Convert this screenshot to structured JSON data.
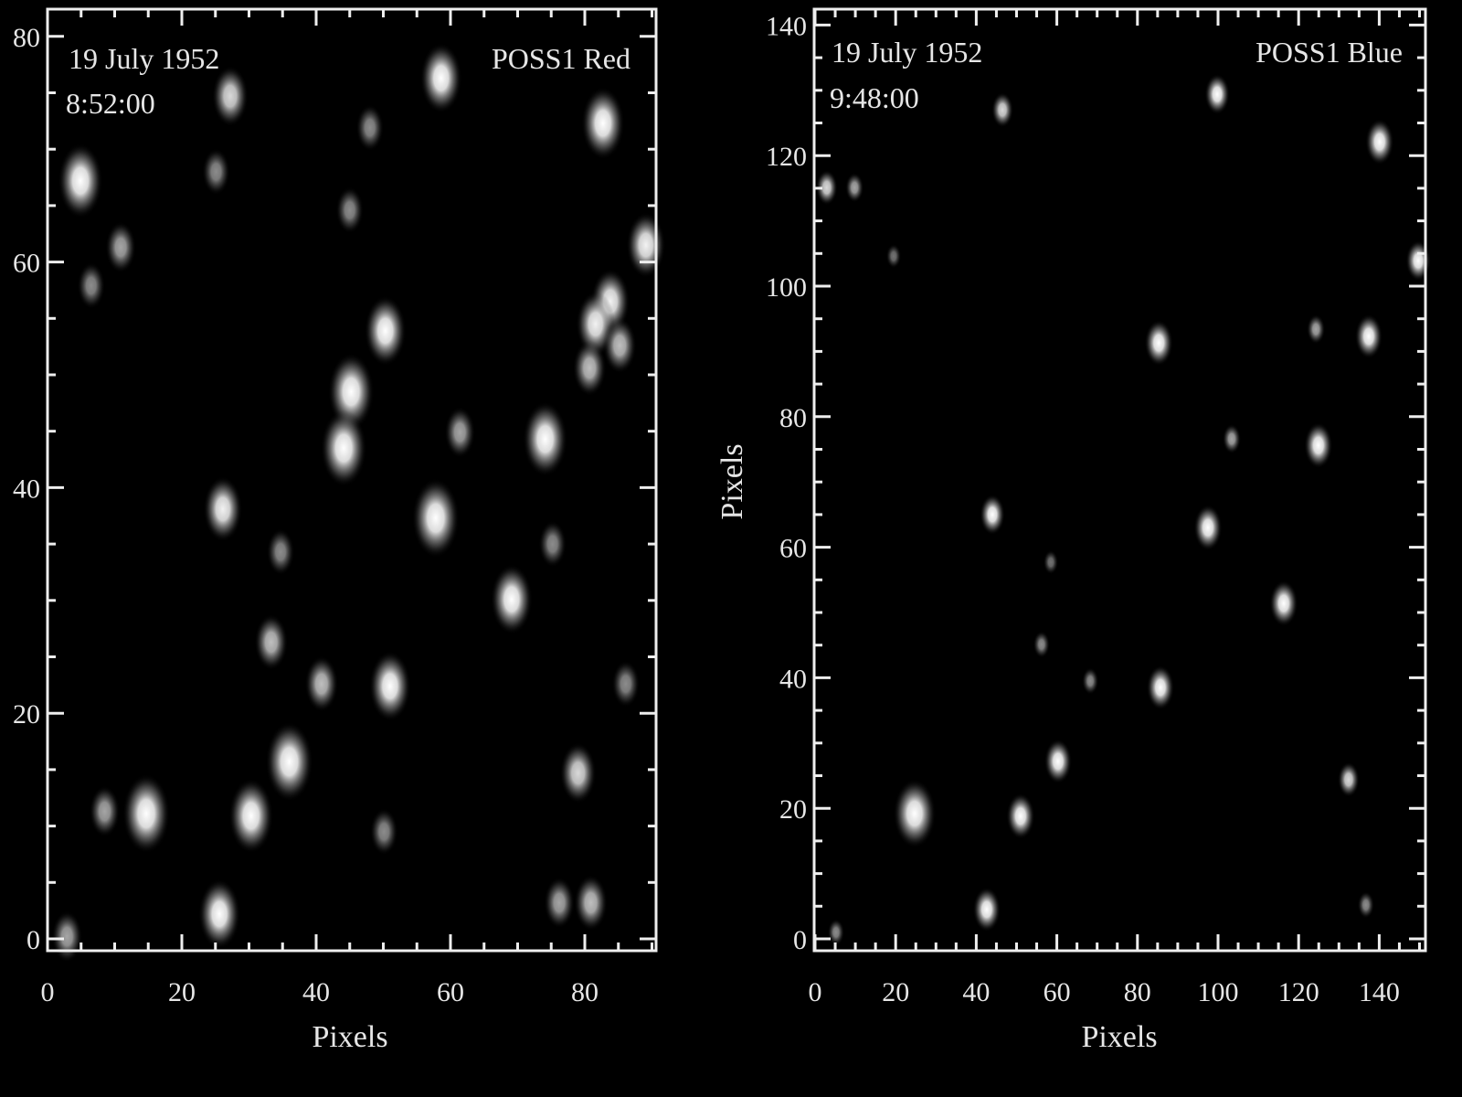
{
  "chart_data": [
    {
      "type": "image",
      "annotation_date": "19 July 1952",
      "annotation_time": "8:52:00",
      "annotation_plate": "POSS1 Red",
      "xlabel": "Pixels",
      "ylabel": "",
      "xlim": [
        0,
        90.6
      ],
      "ylim": [
        0,
        82
      ],
      "xticks": [
        0,
        20,
        40,
        60,
        80
      ],
      "yticks": [
        0,
        20,
        40,
        60,
        80
      ],
      "colormap": "grayscale",
      "background": "#000000",
      "sources": [
        {
          "x": 4.9,
          "y": 67.2,
          "b": 0.9
        },
        {
          "x": 58.6,
          "y": 76.3,
          "b": 0.8
        },
        {
          "x": 27.2,
          "y": 74.7,
          "b": 0.6
        },
        {
          "x": 82.7,
          "y": 72.3,
          "b": 0.85
        },
        {
          "x": 10.9,
          "y": 61.3,
          "b": 0.4
        },
        {
          "x": 6.5,
          "y": 57.9,
          "b": 0.3
        },
        {
          "x": 89.1,
          "y": 61.5,
          "b": 0.7
        },
        {
          "x": 50.3,
          "y": 53.9,
          "b": 0.8
        },
        {
          "x": 45.2,
          "y": 48.5,
          "b": 0.95
        },
        {
          "x": 44.1,
          "y": 43.5,
          "b": 0.95
        },
        {
          "x": 83.8,
          "y": 56.5,
          "b": 0.7
        },
        {
          "x": 81.6,
          "y": 54.5,
          "b": 0.7
        },
        {
          "x": 85.2,
          "y": 52.6,
          "b": 0.5
        },
        {
          "x": 80.7,
          "y": 50.6,
          "b": 0.5
        },
        {
          "x": 74.1,
          "y": 44.3,
          "b": 0.9
        },
        {
          "x": 61.4,
          "y": 44.9,
          "b": 0.4
        },
        {
          "x": 57.8,
          "y": 37.3,
          "b": 1.0
        },
        {
          "x": 26.1,
          "y": 38.1,
          "b": 0.7
        },
        {
          "x": 69.1,
          "y": 30.1,
          "b": 0.8
        },
        {
          "x": 33.3,
          "y": 26.3,
          "b": 0.5
        },
        {
          "x": 40.8,
          "y": 22.6,
          "b": 0.5
        },
        {
          "x": 51.0,
          "y": 22.4,
          "b": 0.8
        },
        {
          "x": 36.0,
          "y": 15.7,
          "b": 1.0
        },
        {
          "x": 14.7,
          "y": 11.1,
          "b": 1.0
        },
        {
          "x": 30.3,
          "y": 10.9,
          "b": 0.9
        },
        {
          "x": 79.0,
          "y": 14.7,
          "b": 0.6
        },
        {
          "x": 25.6,
          "y": 2.2,
          "b": 0.8
        },
        {
          "x": 80.9,
          "y": 3.2,
          "b": 0.5
        },
        {
          "x": 76.2,
          "y": 3.2,
          "b": 0.4
        },
        {
          "x": 50.1,
          "y": 9.5,
          "b": 0.3
        },
        {
          "x": 8.5,
          "y": 11.3,
          "b": 0.4
        },
        {
          "x": 34.7,
          "y": 34.3,
          "b": 0.3
        },
        {
          "x": 75.2,
          "y": 35.0,
          "b": 0.3
        },
        {
          "x": 86.1,
          "y": 22.6,
          "b": 0.3
        },
        {
          "x": 2.9,
          "y": 0.2,
          "b": 0.4
        },
        {
          "x": 48.0,
          "y": 71.9,
          "b": 0.3
        },
        {
          "x": 25.1,
          "y": 68.0,
          "b": 0.3
        },
        {
          "x": 45.0,
          "y": 64.6,
          "b": 0.3
        }
      ]
    },
    {
      "type": "image",
      "annotation_date": "19 July 1952",
      "annotation_time": "9:48:00",
      "annotation_plate": "POSS1 Blue",
      "xlabel": "Pixels",
      "ylabel": "Pixels",
      "xlim": [
        0,
        151
      ],
      "ylim": [
        0,
        142
      ],
      "xticks": [
        0,
        20,
        40,
        60,
        80,
        100,
        120,
        140
      ],
      "yticks": [
        0,
        20,
        40,
        60,
        80,
        100,
        120,
        140
      ],
      "colormap": "grayscale",
      "background": "#000000",
      "sources": [
        {
          "x": 24.7,
          "y": 19.2,
          "b": 1.0,
          "s": 1.5
        },
        {
          "x": 51.0,
          "y": 18.8,
          "b": 1.0
        },
        {
          "x": 60.3,
          "y": 27.2,
          "b": 0.95
        },
        {
          "x": 42.6,
          "y": 4.5,
          "b": 0.95
        },
        {
          "x": 85.7,
          "y": 38.5,
          "b": 0.95
        },
        {
          "x": 116.3,
          "y": 51.4,
          "b": 1.0
        },
        {
          "x": 97.5,
          "y": 63.0,
          "b": 1.0
        },
        {
          "x": 124.9,
          "y": 75.6,
          "b": 1.0
        },
        {
          "x": 85.3,
          "y": 91.3,
          "b": 1.0
        },
        {
          "x": 137.4,
          "y": 92.3,
          "b": 0.95
        },
        {
          "x": 44.0,
          "y": 65.0,
          "b": 0.8
        },
        {
          "x": 140.1,
          "y": 122.1,
          "b": 1.0
        },
        {
          "x": 99.8,
          "y": 129.4,
          "b": 0.8
        },
        {
          "x": 46.5,
          "y": 127.0,
          "b": 0.6
        },
        {
          "x": 149.7,
          "y": 103.9,
          "b": 0.8
        },
        {
          "x": 132.4,
          "y": 24.4,
          "b": 0.6
        },
        {
          "x": 124.3,
          "y": 93.4,
          "b": 0.4
        },
        {
          "x": 2.9,
          "y": 115.1,
          "b": 0.6
        },
        {
          "x": 9.8,
          "y": 115.1,
          "b": 0.4
        },
        {
          "x": 103.4,
          "y": 76.6,
          "b": 0.4
        },
        {
          "x": 68.3,
          "y": 39.5,
          "b": 0.3
        },
        {
          "x": 56.2,
          "y": 45.1,
          "b": 0.3
        },
        {
          "x": 136.7,
          "y": 5.2,
          "b": 0.3
        },
        {
          "x": 5.2,
          "y": 1.0,
          "b": 0.3
        },
        {
          "x": 19.5,
          "y": 104.6,
          "b": 0.2
        },
        {
          "x": 58.5,
          "y": 57.7,
          "b": 0.2
        }
      ]
    }
  ]
}
